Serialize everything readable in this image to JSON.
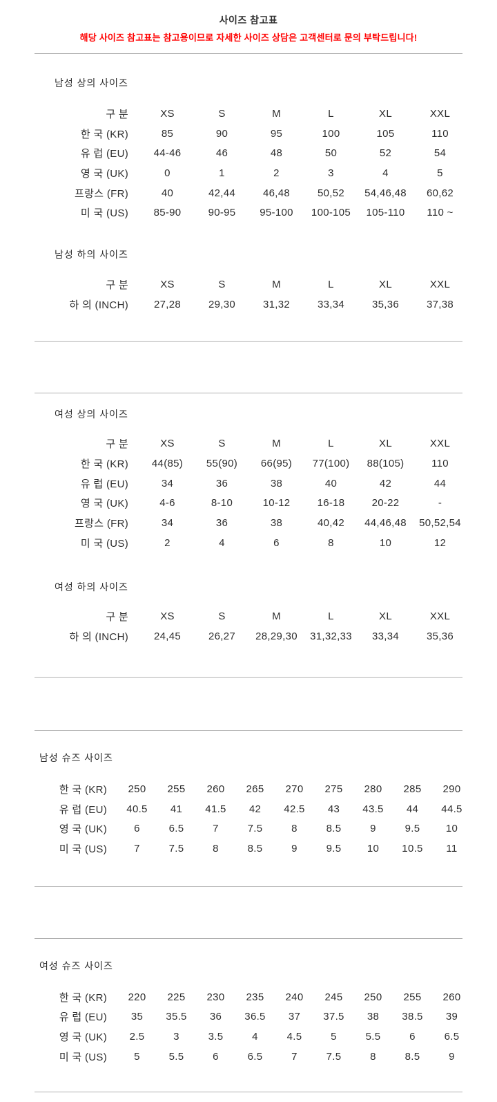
{
  "page": {
    "title": "사이즈 참고표",
    "notice": "해당 사이즈 참고표는 참고용이므로 자세한 사이즈 상담은 고객센터로 문의 부탁드립니다!"
  },
  "colors": {
    "notice_red": "#ff0000",
    "divider_gray": "#b0b0b0",
    "text": "#2e2e2e"
  },
  "tables": [
    {
      "id": "mens-top",
      "title": "남성 상의 사이즈",
      "kind": "apparel",
      "header": [
        "구 분",
        "XS",
        "S",
        "M",
        "L",
        "XL",
        "XXL"
      ],
      "rows": [
        [
          "한 국 (KR)",
          "85",
          "90",
          "95",
          "100",
          "105",
          "110"
        ],
        [
          "유 럽 (EU)",
          "44-46",
          "46",
          "48",
          "50",
          "52",
          "54"
        ],
        [
          "영 국 (UK)",
          "0",
          "1",
          "2",
          "3",
          "4",
          "5"
        ],
        [
          "프랑스 (FR)",
          "40",
          "42,44",
          "46,48",
          "50,52",
          "54,46,48",
          "60,62"
        ],
        [
          "미 국 (US)",
          "85-90",
          "90-95",
          "95-100",
          "100-105",
          "105-110",
          "110 ~"
        ]
      ]
    },
    {
      "id": "mens-bottom",
      "title": "남성 하의 사이즈",
      "kind": "apparel",
      "header": [
        "구 분",
        "XS",
        "S",
        "M",
        "L",
        "XL",
        "XXL"
      ],
      "rows": [
        [
          "하 의 (INCH)",
          "27,28",
          "29,30",
          "31,32",
          "33,34",
          "35,36",
          "37,38"
        ]
      ]
    },
    {
      "id": "womens-top",
      "title": "여성 상의 사이즈",
      "kind": "apparel",
      "header": [
        "구 분",
        "XS",
        "S",
        "M",
        "L",
        "XL",
        "XXL"
      ],
      "rows": [
        [
          "한 국 (KR)",
          "44(85)",
          "55(90)",
          "66(95)",
          "77(100)",
          "88(105)",
          "110"
        ],
        [
          "유 럽 (EU)",
          "34",
          "36",
          "38",
          "40",
          "42",
          "44"
        ],
        [
          "영 국 (UK)",
          "4-6",
          "8-10",
          "10-12",
          "16-18",
          "20-22",
          "-"
        ],
        [
          "프랑스 (FR)",
          "34",
          "36",
          "38",
          "40,42",
          "44,46,48",
          "50,52,54"
        ],
        [
          "미 국 (US)",
          "2",
          "4",
          "6",
          "8",
          "10",
          "12"
        ]
      ]
    },
    {
      "id": "womens-bottom",
      "title": "여성 하의 사이즈",
      "kind": "apparel",
      "header": [
        "구 분",
        "XS",
        "S",
        "M",
        "L",
        "XL",
        "XXL"
      ],
      "rows": [
        [
          "하 의 (INCH)",
          "24,45",
          "26,27",
          "28,29,30",
          "31,32,33",
          "33,34",
          "35,36"
        ]
      ]
    },
    {
      "id": "mens-shoes",
      "title": "남성 슈즈 사이즈",
      "kind": "shoes",
      "header": null,
      "rows": [
        [
          "한 국 (KR)",
          "250",
          "255",
          "260",
          "265",
          "270",
          "275",
          "280",
          "285",
          "290"
        ],
        [
          "유 럽 (EU)",
          "40.5",
          "41",
          "41.5",
          "42",
          "42.5",
          "43",
          "43.5",
          "44",
          "44.5"
        ],
        [
          "영 국 (UK)",
          "6",
          "6.5",
          "7",
          "7.5",
          "8",
          "8.5",
          "9",
          "9.5",
          "10"
        ],
        [
          "미 국 (US)",
          "7",
          "7.5",
          "8",
          "8.5",
          "9",
          "9.5",
          "10",
          "10.5",
          "11"
        ]
      ]
    },
    {
      "id": "womens-shoes",
      "title": "여성 슈즈 사이즈",
      "kind": "shoes",
      "header": null,
      "rows": [
        [
          "한 국 (KR)",
          "220",
          "225",
          "230",
          "235",
          "240",
          "245",
          "250",
          "255",
          "260"
        ],
        [
          "유 럽 (EU)",
          "35",
          "35.5",
          "36",
          "36.5",
          "37",
          "37.5",
          "38",
          "38.5",
          "39"
        ],
        [
          "영 국 (UK)",
          "2.5",
          "3",
          "3.5",
          "4",
          "4.5",
          "5",
          "5.5",
          "6",
          "6.5"
        ],
        [
          "미 국 (US)",
          "5",
          "5.5",
          "6",
          "6.5",
          "7",
          "7.5",
          "8",
          "8.5",
          "9"
        ]
      ]
    }
  ]
}
